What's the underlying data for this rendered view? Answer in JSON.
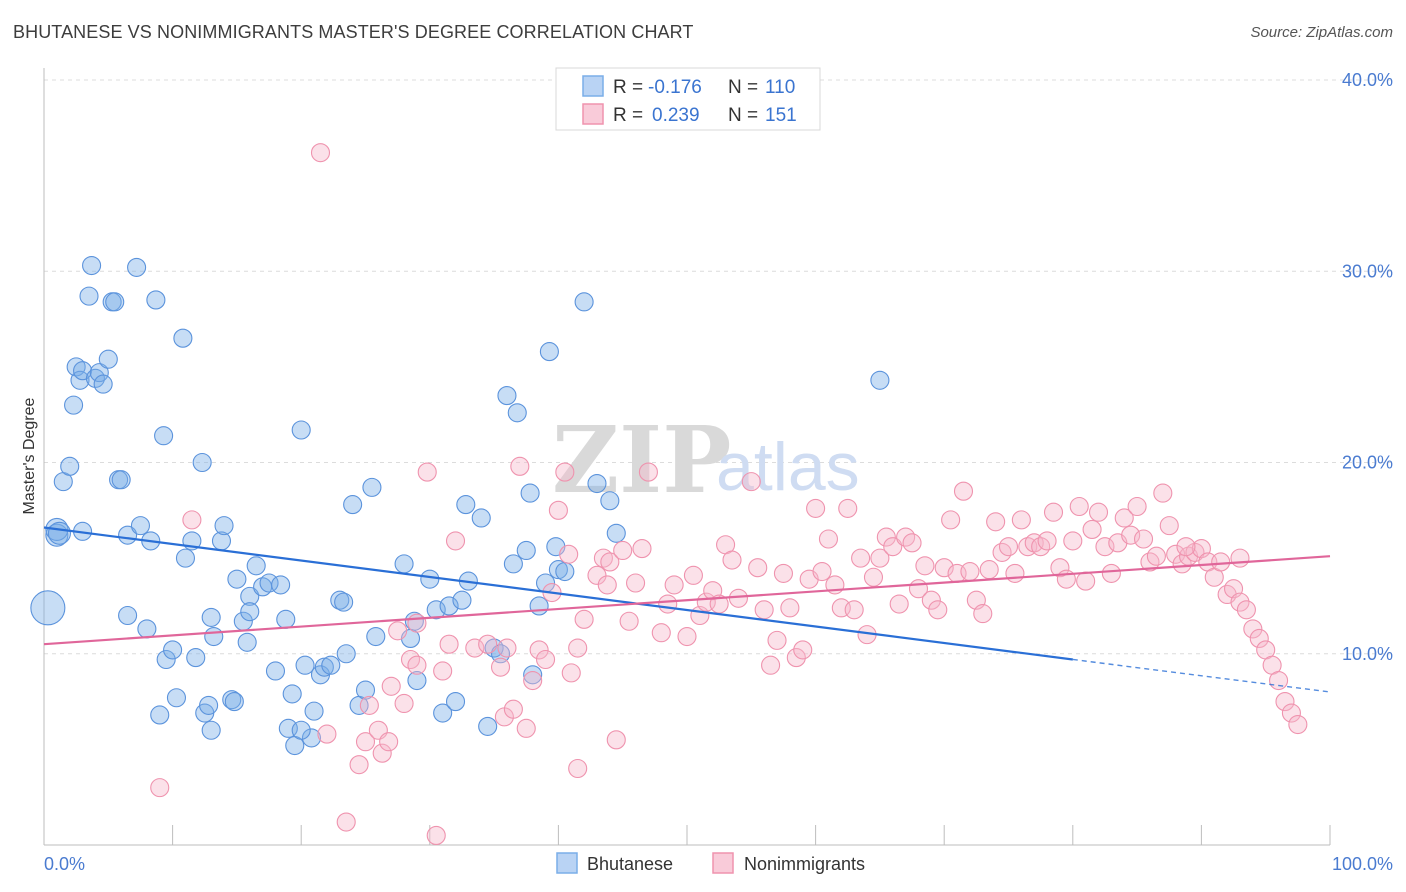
{
  "header": {
    "title": "BHUTANESE VS NONIMMIGRANTS MASTER'S DEGREE CORRELATION CHART",
    "source": "Source: ZipAtlas.com"
  },
  "watermark": {
    "zip": "ZIP",
    "atlas": "atlas"
  },
  "legend": {
    "r_label": "R =",
    "n_label": "N =",
    "rows": [
      {
        "r": "-0.176",
        "n": "110",
        "color": "#a9c8f0"
      },
      {
        "r": "0.239",
        "n": "151",
        "color": "#f6b8cb"
      }
    ]
  },
  "chart_data": {
    "type": "scatter",
    "title": "BHUTANESE VS NONIMMIGRANTS MASTER'S DEGREE CORRELATION CHART",
    "xlabel": "",
    "ylabel": "Master's Degree",
    "xlim": [
      0,
      100
    ],
    "ylim": [
      0,
      40
    ],
    "x_tick_labels": [
      "0.0%",
      "100.0%"
    ],
    "y_ticks": [
      10,
      20,
      30,
      40
    ],
    "y_tick_labels": [
      "10.0%",
      "20.0%",
      "30.0%",
      "40.0%"
    ],
    "grid": true,
    "legend_position": "top-center",
    "series": [
      {
        "name": "Bhutanese",
        "color": "#7aaee8",
        "stroke": "#5b93dc",
        "trend": {
          "x0": 0,
          "y0": 16.6,
          "x1": 80,
          "y1": 9.7,
          "dashed_to": [
            100,
            8.0
          ],
          "color": "#2a6fd6"
        },
        "points": [
          [
            0.3,
            12.4
          ],
          [
            1,
            16.2
          ],
          [
            1,
            16.5
          ],
          [
            1.5,
            19.0
          ],
          [
            2,
            19.8
          ],
          [
            2.3,
            23.0
          ],
          [
            2.5,
            25.0
          ],
          [
            2.8,
            24.3
          ],
          [
            3,
            24.8
          ],
          [
            3.5,
            28.7
          ],
          [
            3.7,
            30.3
          ],
          [
            4,
            24.4
          ],
          [
            4.3,
            24.7
          ],
          [
            4.6,
            24.1
          ],
          [
            5,
            25.4
          ],
          [
            5.3,
            28.4
          ],
          [
            5.5,
            28.4
          ],
          [
            5.8,
            19.1
          ],
          [
            6,
            19.1
          ],
          [
            6.5,
            16.2
          ],
          [
            7.2,
            30.2
          ],
          [
            7.5,
            16.7
          ],
          [
            8,
            11.3
          ],
          [
            8.3,
            15.9
          ],
          [
            8.7,
            28.5
          ],
          [
            9.3,
            21.4
          ],
          [
            9.5,
            9.7
          ],
          [
            10,
            10.2
          ],
          [
            10.3,
            7.7
          ],
          [
            10.8,
            26.5
          ],
          [
            11,
            15.0
          ],
          [
            11.5,
            15.9
          ],
          [
            11.8,
            9.8
          ],
          [
            12.3,
            20.0
          ],
          [
            12.5,
            6.9
          ],
          [
            12.8,
            7.3
          ],
          [
            13,
            11.9
          ],
          [
            13.2,
            10.9
          ],
          [
            13.8,
            15.9
          ],
          [
            14,
            16.7
          ],
          [
            14.6,
            7.6
          ],
          [
            14.8,
            7.5
          ],
          [
            15,
            13.9
          ],
          [
            15.5,
            11.7
          ],
          [
            15.8,
            10.6
          ],
          [
            16,
            13.0
          ],
          [
            16.5,
            14.6
          ],
          [
            17,
            13.5
          ],
          [
            17.5,
            13.7
          ],
          [
            18,
            9.1
          ],
          [
            18.4,
            13.6
          ],
          [
            18.8,
            11.8
          ],
          [
            19,
            6.1
          ],
          [
            19.3,
            7.9
          ],
          [
            19.5,
            5.2
          ],
          [
            20,
            21.7
          ],
          [
            20.3,
            9.4
          ],
          [
            20.8,
            5.6
          ],
          [
            21,
            7.0
          ],
          [
            21.5,
            8.9
          ],
          [
            21.8,
            9.3
          ],
          [
            22.3,
            9.4
          ],
          [
            23,
            12.8
          ],
          [
            23.3,
            12.7
          ],
          [
            23.5,
            10.0
          ],
          [
            24,
            17.8
          ],
          [
            24.5,
            7.3
          ],
          [
            25,
            8.1
          ],
          [
            25.5,
            18.7
          ],
          [
            25.8,
            10.9
          ],
          [
            28,
            14.7
          ],
          [
            28.5,
            10.8
          ],
          [
            28.8,
            11.7
          ],
          [
            29,
            8.6
          ],
          [
            30,
            13.9
          ],
          [
            30.5,
            12.3
          ],
          [
            31,
            6.9
          ],
          [
            31.5,
            12.5
          ],
          [
            32,
            7.5
          ],
          [
            32.5,
            12.8
          ],
          [
            32.8,
            17.8
          ],
          [
            33,
            13.8
          ],
          [
            34,
            17.1
          ],
          [
            34.5,
            6.2
          ],
          [
            35,
            10.3
          ],
          [
            35.5,
            10.0
          ],
          [
            36,
            23.5
          ],
          [
            36.5,
            14.7
          ],
          [
            36.8,
            22.6
          ],
          [
            37.5,
            15.4
          ],
          [
            37.8,
            18.4
          ],
          [
            38,
            8.9
          ],
          [
            38.5,
            12.5
          ],
          [
            39,
            13.7
          ],
          [
            39.3,
            25.8
          ],
          [
            39.8,
            15.6
          ],
          [
            40,
            14.4
          ],
          [
            40.5,
            14.3
          ],
          [
            42,
            28.4
          ],
          [
            43,
            18.9
          ],
          [
            44,
            18.0
          ],
          [
            44.5,
            16.3
          ],
          [
            65,
            24.3
          ],
          [
            16,
            12.2
          ],
          [
            20,
            6.0
          ],
          [
            13,
            6.0
          ],
          [
            9,
            6.8
          ],
          [
            6.5,
            12.0
          ],
          [
            3,
            16.4
          ],
          [
            1.2,
            16.3
          ]
        ]
      },
      {
        "name": "Nonimmigrants",
        "color": "#f6b8cb",
        "stroke": "#ef93ae",
        "trend": {
          "x0": 0,
          "y0": 10.5,
          "x1": 100,
          "y1": 15.1,
          "color": "#e0669a"
        },
        "points": [
          [
            9,
            3.0
          ],
          [
            11.5,
            17.0
          ],
          [
            21.5,
            36.2
          ],
          [
            22,
            5.8
          ],
          [
            23.5,
            1.2
          ],
          [
            24.5,
            4.2
          ],
          [
            25,
            5.4
          ],
          [
            25.3,
            7.3
          ],
          [
            26,
            6.0
          ],
          [
            26.3,
            4.8
          ],
          [
            26.8,
            5.4
          ],
          [
            27,
            8.3
          ],
          [
            27.5,
            11.2
          ],
          [
            28,
            7.4
          ],
          [
            28.5,
            9.7
          ],
          [
            29,
            11.6
          ],
          [
            29.8,
            19.5
          ],
          [
            30.5,
            0.5
          ],
          [
            31,
            9.1
          ],
          [
            31.5,
            10.5
          ],
          [
            32,
            15.9
          ],
          [
            33.5,
            10.3
          ],
          [
            34.5,
            10.5
          ],
          [
            35.5,
            9.3
          ],
          [
            35.8,
            6.7
          ],
          [
            36,
            10.3
          ],
          [
            36.5,
            7.1
          ],
          [
            37,
            19.8
          ],
          [
            37.5,
            6.1
          ],
          [
            38,
            8.6
          ],
          [
            38.5,
            10.2
          ],
          [
            39,
            9.7
          ],
          [
            39.5,
            13.2
          ],
          [
            40,
            17.5
          ],
          [
            40.5,
            19.5
          ],
          [
            40.8,
            15.2
          ],
          [
            41,
            9.0
          ],
          [
            41.5,
            10.3
          ],
          [
            42,
            11.8
          ],
          [
            43,
            14.1
          ],
          [
            43.5,
            15.0
          ],
          [
            43.8,
            13.6
          ],
          [
            44,
            14.8
          ],
          [
            44.5,
            5.5
          ],
          [
            45,
            15.4
          ],
          [
            45.5,
            11.7
          ],
          [
            46,
            13.7
          ],
          [
            46.5,
            15.5
          ],
          [
            47,
            19.5
          ],
          [
            48,
            11.1
          ],
          [
            48.5,
            12.6
          ],
          [
            49,
            13.6
          ],
          [
            50,
            10.9
          ],
          [
            50.5,
            14.1
          ],
          [
            51,
            12.0
          ],
          [
            51.5,
            12.7
          ],
          [
            52,
            13.3
          ],
          [
            52.5,
            12.6
          ],
          [
            53,
            15.7
          ],
          [
            53.5,
            14.9
          ],
          [
            54,
            12.9
          ],
          [
            55,
            19.0
          ],
          [
            55.5,
            14.5
          ],
          [
            56,
            12.3
          ],
          [
            56.5,
            9.4
          ],
          [
            57,
            10.7
          ],
          [
            57.5,
            14.2
          ],
          [
            58,
            12.4
          ],
          [
            58.5,
            9.8
          ],
          [
            59,
            10.2
          ],
          [
            59.5,
            13.9
          ],
          [
            60,
            17.6
          ],
          [
            60.5,
            14.3
          ],
          [
            61,
            16.0
          ],
          [
            61.5,
            13.6
          ],
          [
            62,
            12.4
          ],
          [
            62.5,
            17.6
          ],
          [
            63,
            12.3
          ],
          [
            63.5,
            15.0
          ],
          [
            64,
            11.0
          ],
          [
            64.5,
            14.0
          ],
          [
            65,
            15.0
          ],
          [
            65.5,
            16.1
          ],
          [
            66,
            15.6
          ],
          [
            66.5,
            12.6
          ],
          [
            67,
            16.1
          ],
          [
            67.5,
            15.8
          ],
          [
            68,
            13.4
          ],
          [
            68.5,
            14.6
          ],
          [
            69,
            12.8
          ],
          [
            69.5,
            12.3
          ],
          [
            70,
            14.5
          ],
          [
            70.5,
            17.0
          ],
          [
            71,
            14.2
          ],
          [
            71.5,
            18.5
          ],
          [
            72,
            14.3
          ],
          [
            72.5,
            12.8
          ],
          [
            73,
            12.1
          ],
          [
            73.5,
            14.4
          ],
          [
            74,
            16.9
          ],
          [
            74.5,
            15.3
          ],
          [
            75,
            15.6
          ],
          [
            75.5,
            14.2
          ],
          [
            76,
            17.0
          ],
          [
            76.5,
            15.6
          ],
          [
            77,
            15.8
          ],
          [
            77.5,
            15.6
          ],
          [
            78,
            15.9
          ],
          [
            78.5,
            17.4
          ],
          [
            79,
            14.5
          ],
          [
            79.5,
            13.9
          ],
          [
            80,
            15.9
          ],
          [
            80.5,
            17.7
          ],
          [
            81,
            13.8
          ],
          [
            81.5,
            16.5
          ],
          [
            82,
            17.4
          ],
          [
            82.5,
            15.6
          ],
          [
            83,
            14.2
          ],
          [
            83.5,
            15.8
          ],
          [
            84,
            17.1
          ],
          [
            84.5,
            16.2
          ],
          [
            85,
            17.7
          ],
          [
            85.5,
            16.0
          ],
          [
            86,
            14.8
          ],
          [
            86.5,
            15.1
          ],
          [
            87,
            18.4
          ],
          [
            87.5,
            16.7
          ],
          [
            88,
            15.2
          ],
          [
            88.5,
            14.7
          ],
          [
            89,
            15.1
          ],
          [
            89.5,
            15.3
          ],
          [
            90,
            15.5
          ],
          [
            90.5,
            14.8
          ],
          [
            91,
            14.0
          ],
          [
            91.5,
            14.8
          ],
          [
            92,
            13.1
          ],
          [
            92.5,
            13.4
          ],
          [
            93,
            12.7
          ],
          [
            93.5,
            12.3
          ],
          [
            94,
            11.3
          ],
          [
            94.5,
            10.8
          ],
          [
            95,
            10.2
          ],
          [
            95.5,
            9.4
          ],
          [
            96,
            8.6
          ],
          [
            96.5,
            7.5
          ],
          [
            97,
            6.9
          ],
          [
            97.5,
            6.3
          ],
          [
            29,
            9.4
          ],
          [
            41.5,
            4.0
          ],
          [
            88.8,
            15.6
          ],
          [
            93,
            15.0
          ]
        ]
      }
    ]
  }
}
